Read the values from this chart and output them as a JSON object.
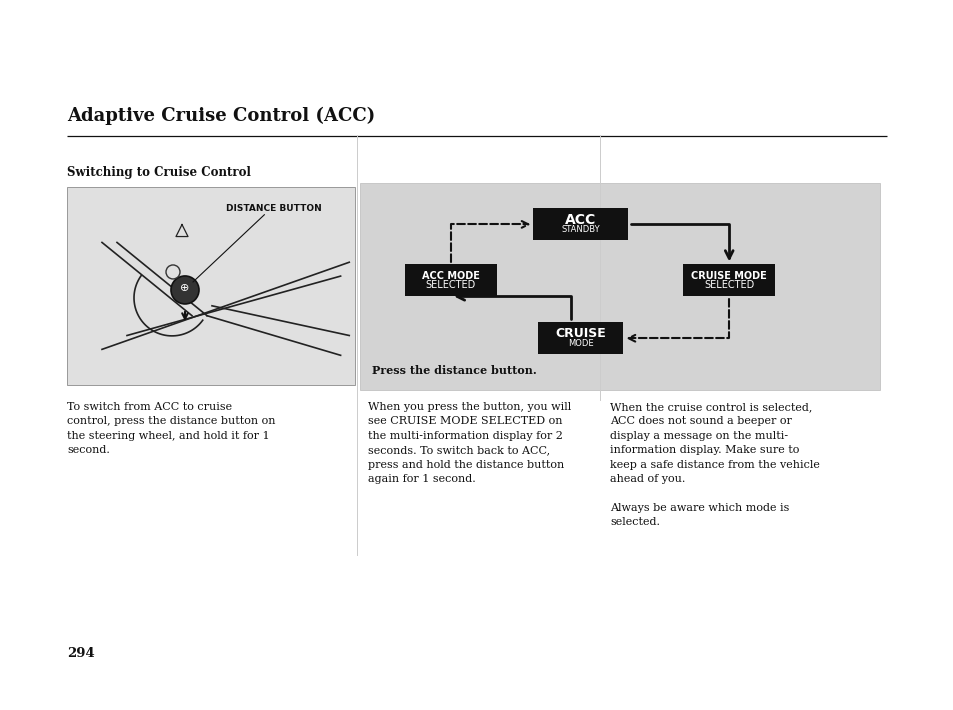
{
  "title": "Adaptive Cruise Control (ACC)",
  "section_title": "Switching to Cruise Control",
  "page_number": "294",
  "bg_color": "#ffffff",
  "diagram_bg": "#d3d3d3",
  "box_color": "#111111",
  "box_text_color": "#ffffff",
  "arrow_color": "#111111",
  "text_left": "To switch from ACC to cruise\ncontrol, press the distance button on\nthe steering wheel, and hold it for 1\nsecond.",
  "text_middle": "When you press the button, you will\nsee CRUISE MODE SELECTED on\nthe multi-information display for 2\nseconds. To switch back to ACC,\npress and hold the distance button\nagain for 1 second.",
  "text_right": "When the cruise control is selected,\nACC does not sound a beeper or\ndisplay a message on the multi-\ninformation display. Make sure to\nkeep a safe distance from the vehicle\nahead of you.\n\nAlways be aware which mode is\nselected.",
  "diagram_caption": "Press the distance button.",
  "distance_button_label": "DISTANCE BUTTON"
}
